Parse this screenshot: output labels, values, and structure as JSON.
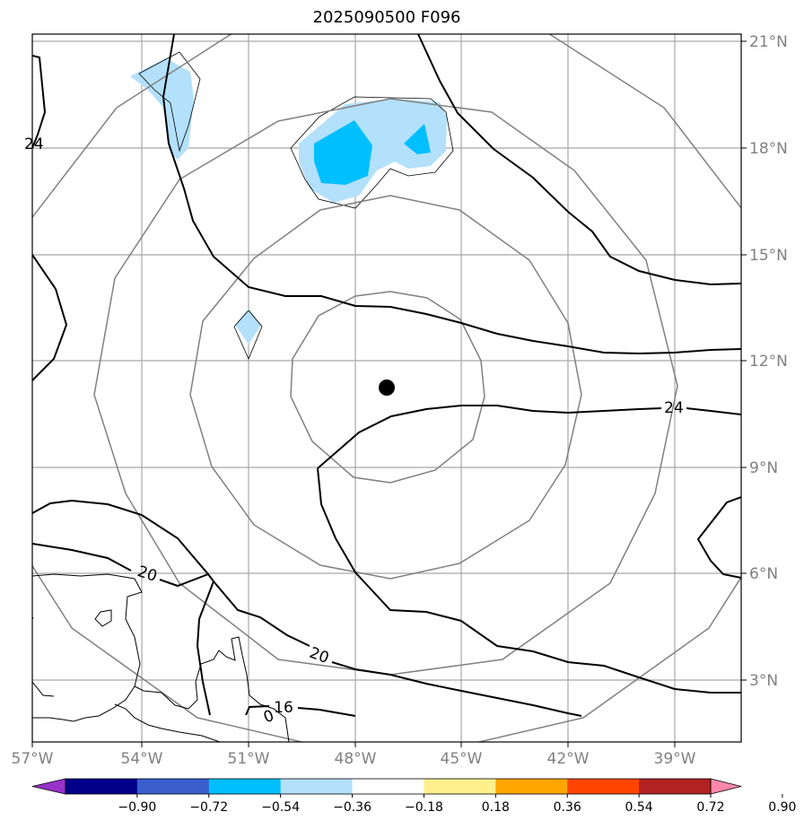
{
  "title": "2025090500 F096",
  "map": {
    "lon_labels": [
      "57°W",
      "54°W",
      "51°W",
      "48°W",
      "45°W",
      "42°W",
      "39°W"
    ],
    "lat_labels": [
      "21°N",
      "18°N",
      "15°N",
      "12°N",
      "9°N",
      "6°N",
      "3°N"
    ],
    "storm_center": {
      "lon": -47.9,
      "lat": 11.8
    },
    "contour_labels": [
      "24",
      "24",
      "20",
      "20",
      "16",
      "0"
    ],
    "colors": {
      "gridline": "#a0a0a0",
      "range_ring": "#808080",
      "contour": "#000000",
      "fill_light": "#b3e0fb",
      "fill_mid": "#00bfff"
    }
  },
  "colorbar": {
    "ticks": [
      "−0.90",
      "−0.72",
      "−0.54",
      "−0.36",
      "−0.18",
      "0.18",
      "0.36",
      "0.54",
      "0.72",
      "0.90"
    ],
    "colors": [
      "#9932cc",
      "#00008b",
      "#3a5fcd",
      "#00bfff",
      "#b3e0fb",
      "#ffffff",
      "#fff08c",
      "#ffa500",
      "#ff4500",
      "#b22222",
      "#ff88aa"
    ]
  }
}
